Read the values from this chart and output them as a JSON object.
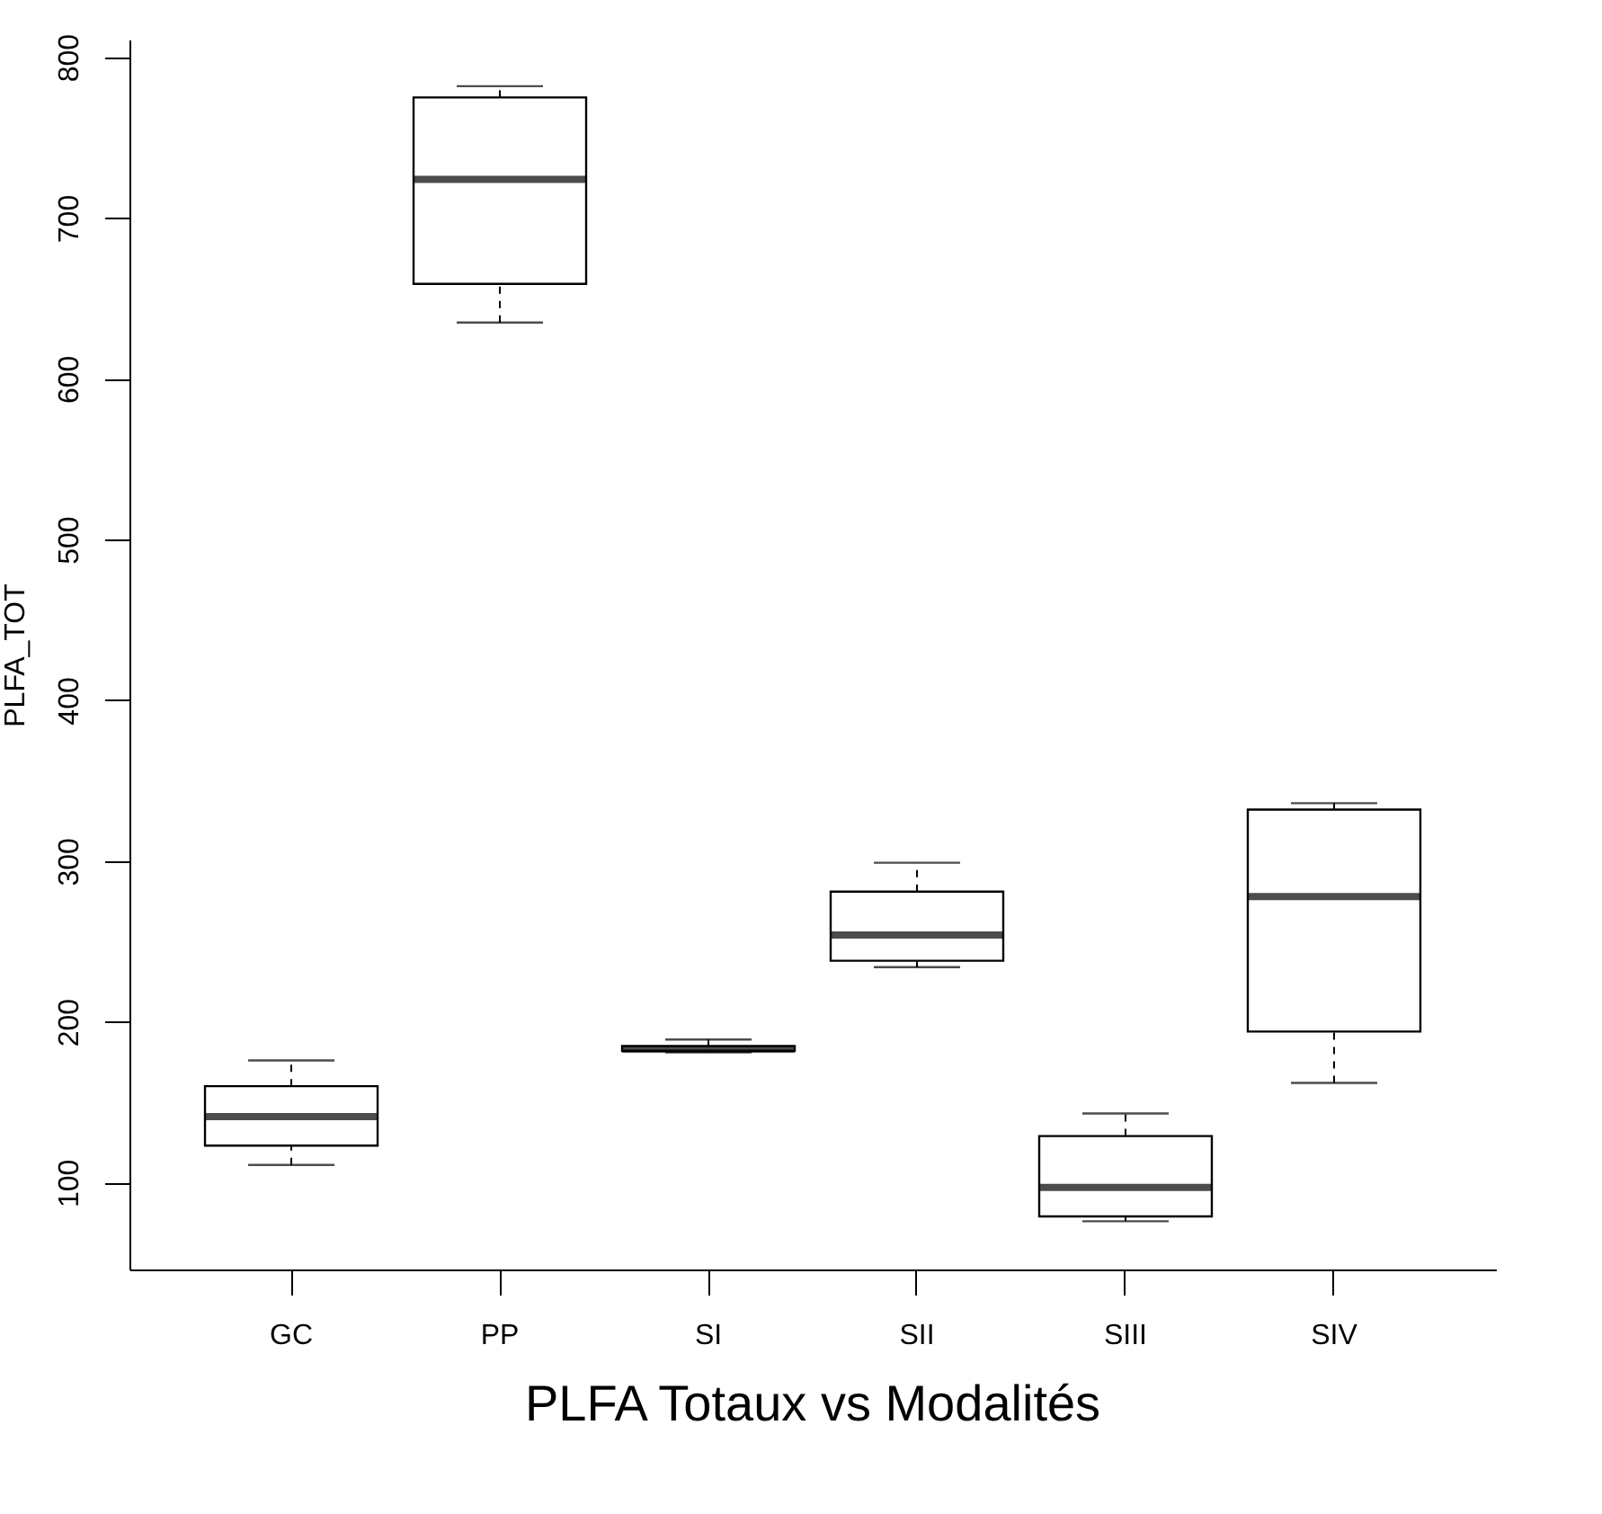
{
  "chart_data": {
    "type": "box",
    "title": "PLFA Totaux vs Modalités",
    "ylabel": "PLFA_TOT",
    "categories": [
      "GC",
      "PP",
      "SI",
      "SII",
      "SIII",
      "SIV"
    ],
    "boxes": [
      {
        "low": 111,
        "q1": 123,
        "median": 141,
        "q3": 160,
        "high": 176
      },
      {
        "low": 635,
        "q1": 659,
        "median": 724,
        "q3": 775,
        "high": 782
      },
      {
        "low": 181,
        "q1": 182,
        "median": 183,
        "q3": 185,
        "high": 189
      },
      {
        "low": 234,
        "q1": 238,
        "median": 254,
        "q3": 281,
        "high": 299
      },
      {
        "low": 76,
        "q1": 79,
        "median": 97,
        "q3": 129,
        "high": 143
      },
      {
        "low": 162,
        "q1": 194,
        "median": 278,
        "q3": 332,
        "high": 336
      }
    ],
    "ylim": [
      46,
      811
    ],
    "yticks": [
      100,
      200,
      300,
      400,
      500,
      600,
      700,
      800
    ],
    "grid": false
  }
}
